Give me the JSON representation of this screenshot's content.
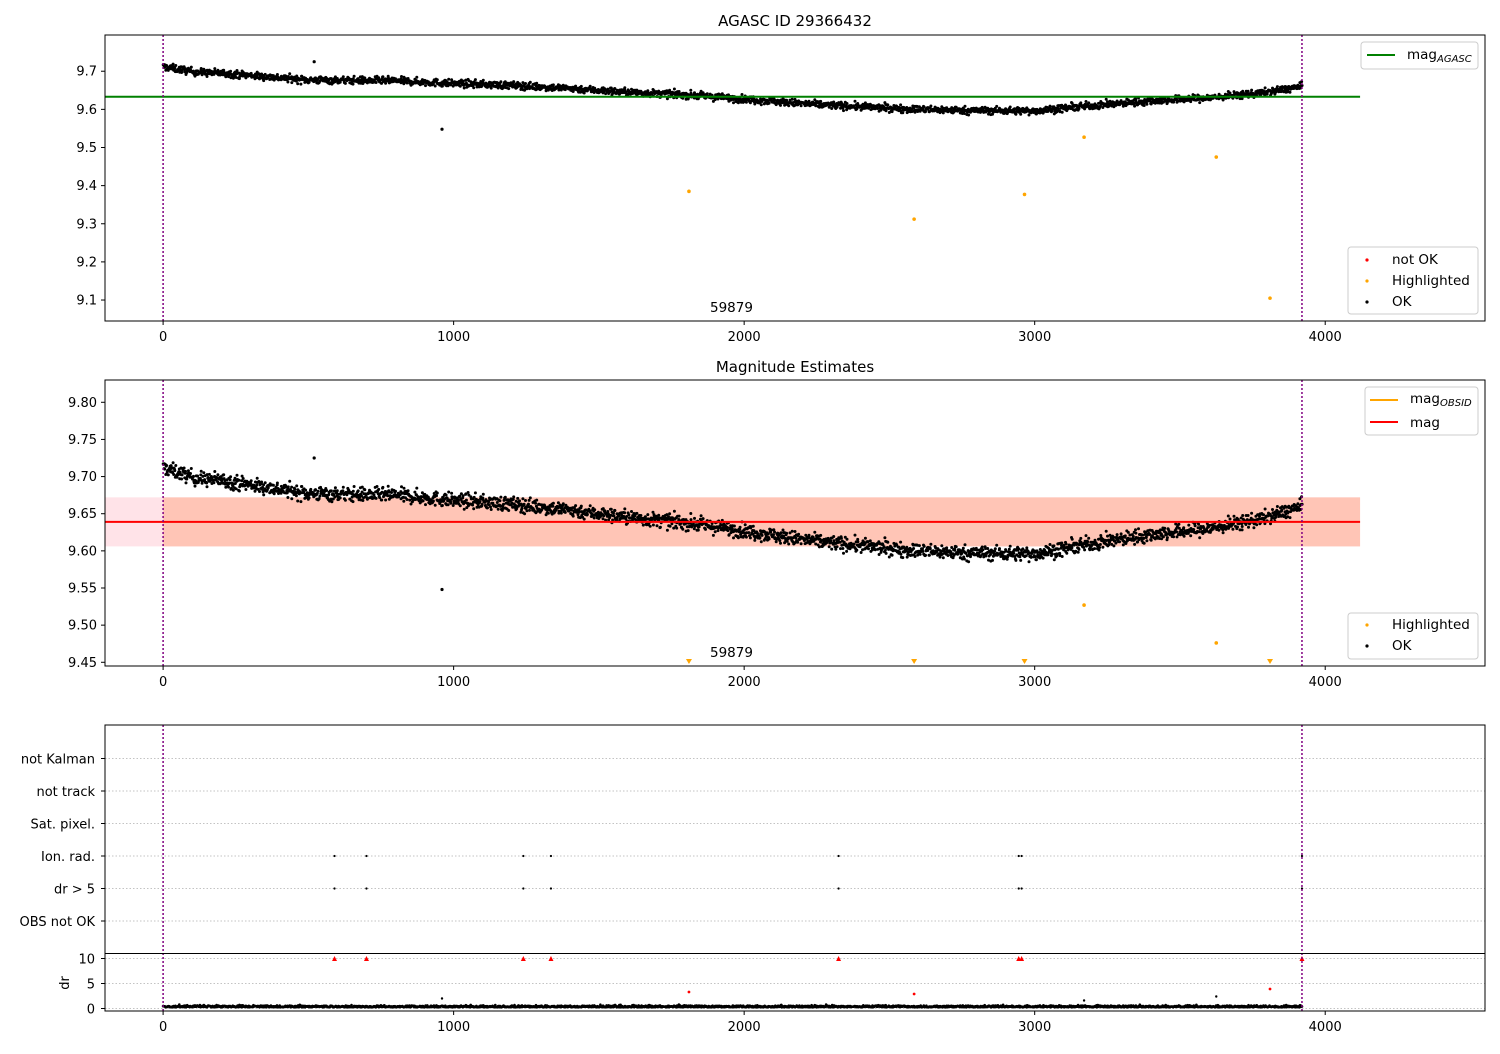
{
  "figure": {
    "colors": {
      "ok": "#000000",
      "highlighted": "#ffa500",
      "not_ok": "#ff0000",
      "vline": "#800080",
      "agasc_line": "#008000",
      "obsid_line": "#ffa500",
      "mag_line": "#ff0000",
      "band_red": "#ffc0cb",
      "band_orange": "#ffa07a",
      "grid": "#b0b0b0"
    }
  },
  "chart_data": [
    {
      "type": "scatter",
      "title": "AGASC ID 29366432",
      "xlim": [
        -200,
        4550
      ],
      "ylim": [
        9.045,
        9.795
      ],
      "x_ticks": [
        0,
        1000,
        2000,
        3000,
        4000
      ],
      "y_ticks": [
        9.1,
        9.2,
        9.3,
        9.4,
        9.5,
        9.6,
        9.7
      ],
      "vlines": [
        0,
        3920
      ],
      "hline": {
        "name": "mag_AGASC",
        "y": 9.633,
        "x_range": [
          -200,
          4120
        ]
      },
      "annotation": {
        "text": "59879",
        "x": 1950,
        "y": 9.055
      },
      "legend_line": {
        "label": "mag",
        "sub": "AGASC",
        "placement": "upper right"
      },
      "legend_points": {
        "placement": "lower right",
        "entries": [
          "not OK",
          "Highlighted",
          "OK"
        ]
      },
      "ok_trend": {
        "x": [
          0,
          200,
          500,
          800,
          1000,
          1200,
          1400,
          1600,
          1800,
          2000,
          2200,
          2400,
          2600,
          2800,
          3000,
          3200,
          3400,
          3600,
          3800,
          3920
        ],
        "y": [
          9.7,
          9.695,
          9.677,
          9.675,
          9.668,
          9.663,
          9.655,
          9.645,
          9.638,
          9.627,
          9.615,
          9.607,
          9.6,
          9.597,
          9.596,
          9.61,
          9.622,
          9.63,
          9.645,
          9.66
        ]
      },
      "ok_outliers": [
        {
          "x": 960,
          "y": 9.548
        },
        {
          "x": 520,
          "y": 9.725
        }
      ],
      "highlighted": [
        {
          "x": 1810,
          "y": 9.385
        },
        {
          "x": 2585,
          "y": 9.312
        },
        {
          "x": 2965,
          "y": 9.377
        },
        {
          "x": 3170,
          "y": 9.527
        },
        {
          "x": 3625,
          "y": 9.475
        },
        {
          "x": 3810,
          "y": 9.105
        }
      ]
    },
    {
      "type": "scatter",
      "title": "Magnitude Estimates",
      "xlim": [
        -200,
        4550
      ],
      "ylim": [
        9.445,
        9.83
      ],
      "x_ticks": [
        0,
        1000,
        2000,
        3000,
        4000
      ],
      "y_ticks": [
        "9.45",
        "9.50",
        "9.55",
        "9.60",
        "9.65",
        "9.70",
        "9.75",
        "9.80"
      ],
      "vlines": [
        0,
        3920
      ],
      "hline": {
        "name": "mag",
        "y": 9.639,
        "x_range": [
          -200,
          4120
        ]
      },
      "bands": [
        {
          "y": [
            9.606,
            9.672
          ],
          "x_range": [
            -200,
            4120
          ],
          "color": "pink"
        },
        {
          "y": [
            9.606,
            9.672
          ],
          "x_range": [
            0,
            4120
          ],
          "color": "lightsalmon"
        }
      ],
      "annotation": {
        "text": "59879",
        "x": 1950,
        "y": 9.457
      },
      "legend_line": {
        "entries": [
          {
            "label": "mag",
            "sub": "OBSID",
            "color": "#ffa500"
          },
          {
            "label": "mag",
            "sub": "",
            "color": "#ff0000"
          }
        ],
        "placement": "upper right"
      },
      "legend_points": {
        "placement": "lower right",
        "entries": [
          "Highlighted",
          "OK"
        ]
      },
      "highlighted": [
        {
          "x": 3170,
          "y": 9.527
        },
        {
          "x": 3625,
          "y": 9.476
        }
      ],
      "offscale_markers": [
        1810,
        2585,
        2965,
        3810
      ]
    },
    {
      "type": "scatter",
      "xlim": [
        -200,
        4550
      ],
      "x_ticks": [
        0,
        1000,
        2000,
        3000,
        4000
      ],
      "vlines": [
        0,
        3920
      ],
      "flag_labels": [
        "not Kalman",
        "not track",
        "Sat. pixel.",
        "Ion. rad.",
        "dr > 5",
        "OBS not OK"
      ],
      "flag_points": {
        "Ion. rad.": [
          590,
          700,
          1240,
          1335,
          2325,
          2945,
          2955,
          3920
        ],
        "dr > 5": [
          590,
          700,
          1240,
          1335,
          2325,
          2945,
          2955,
          3920
        ]
      },
      "dr": {
        "ylabel": "dr",
        "y_ticks": [
          0,
          5,
          10
        ],
        "ylim": [
          -0.5,
          11
        ],
        "red_triangles": [
          590,
          700,
          1240,
          1335,
          2325,
          2945,
          2955,
          3920
        ],
        "red_dots": [
          {
            "x": 1810,
            "y": 3.3
          },
          {
            "x": 2585,
            "y": 2.9
          },
          {
            "x": 3810,
            "y": 3.9
          }
        ],
        "black_outliers": [
          {
            "x": 960,
            "y": 2.0
          },
          {
            "x": 3170,
            "y": 1.6
          },
          {
            "x": 3625,
            "y": 2.4
          }
        ]
      }
    }
  ]
}
